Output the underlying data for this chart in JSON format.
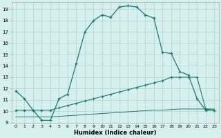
{
  "xlabel": "Humidex (Indice chaleur)",
  "x_ticks": [
    0,
    1,
    2,
    3,
    4,
    5,
    6,
    7,
    8,
    9,
    10,
    11,
    12,
    13,
    14,
    15,
    16,
    17,
    18,
    19,
    20,
    21,
    22,
    23
  ],
  "y_ticks": [
    9,
    10,
    11,
    12,
    13,
    14,
    15,
    16,
    17,
    18,
    19
  ],
  "ylim": [
    9.0,
    19.6
  ],
  "xlim": [
    -0.5,
    23.5
  ],
  "background_color": "#d6f0ef",
  "grid_color": "#b8d8d4",
  "line_color": "#1a7a6a",
  "line1_y": [
    11.8,
    11.1,
    10.1,
    9.2,
    9.2,
    11.1,
    11.5,
    14.2,
    17.0,
    18.0,
    18.5,
    18.3,
    19.2,
    19.3,
    19.2,
    18.5,
    18.2,
    15.2,
    15.1,
    13.5,
    13.2,
    11.1,
    10.1,
    10.1
  ],
  "line2_y": [
    10.1,
    10.1,
    10.1,
    10.1,
    10.1,
    10.3,
    10.5,
    10.7,
    10.9,
    11.1,
    11.3,
    11.5,
    11.7,
    11.9,
    12.1,
    12.3,
    12.5,
    12.7,
    13.0,
    13.0,
    13.0,
    13.0,
    10.2,
    10.1
  ],
  "line3_y": [
    9.5,
    9.5,
    9.5,
    9.5,
    9.5,
    9.55,
    9.6,
    9.65,
    9.7,
    9.75,
    9.8,
    9.85,
    9.9,
    9.95,
    10.0,
    10.05,
    10.1,
    10.1,
    10.15,
    10.2,
    10.2,
    10.2,
    10.2,
    10.2
  ]
}
